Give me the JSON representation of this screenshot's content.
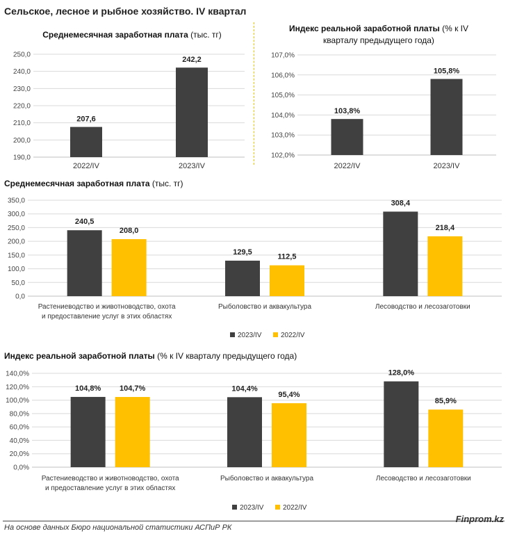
{
  "page": {
    "title": "Сельское, лесное и рыбное хозяйство. IV квартал"
  },
  "colors": {
    "dark": "#404040",
    "accent": "#ffc000",
    "grid": "#d9d9d9",
    "divider": "#f2c200"
  },
  "chart_data": [
    {
      "id": "salary_total",
      "type": "bar",
      "title_bold": "Среднемесячная заработная плата",
      "title_rest": " (тыс. тг)",
      "categories": [
        "2022/IV",
        "2023/IV"
      ],
      "values": [
        207.6,
        242.2
      ],
      "value_labels": [
        "207,6",
        "242,2"
      ],
      "ylim": [
        190,
        250
      ],
      "yticks": [
        "190,0",
        "200,0",
        "210,0",
        "220,0",
        "230,0",
        "240,0",
        "250,0"
      ],
      "grid": true
    },
    {
      "id": "index_total",
      "type": "bar",
      "title_bold": "Индекс реальной заработной платы",
      "title_rest": " (% к IV кварталу предыдущего года)",
      "categories": [
        "2022/IV",
        "2023/IV"
      ],
      "values": [
        103.8,
        105.8
      ],
      "value_labels": [
        "103,8%",
        "105,8%"
      ],
      "ylim": [
        102,
        107
      ],
      "yticks": [
        "102,0%",
        "103,0%",
        "104,0%",
        "105,0%",
        "106,0%",
        "107,0%"
      ],
      "grid": true
    },
    {
      "id": "salary_by_sector",
      "type": "bar",
      "title_bold": "Среднемесячная заработная плата",
      "title_rest": " (тыс. тг)",
      "categories": [
        "Растениеводство и животноводство, охота|и предоставление услуг в этих областях",
        "Рыболовство и аквакультура",
        "Лесоводство и лесозаготовки"
      ],
      "series": [
        {
          "name": "2023/IV",
          "values": [
            240.5,
            129.5,
            308.4
          ],
          "labels": [
            "240,5",
            "129,5",
            "308,4"
          ]
        },
        {
          "name": "2022/IV",
          "values": [
            208.0,
            112.5,
            218.4
          ],
          "labels": [
            "208,0",
            "112,5",
            "218,4"
          ]
        }
      ],
      "ylim": [
        0,
        350
      ],
      "yticks": [
        "0,0",
        "50,0",
        "100,0",
        "150,0",
        "200,0",
        "250,0",
        "300,0",
        "350,0"
      ],
      "legend": "bottom-center",
      "grid": true
    },
    {
      "id": "index_by_sector",
      "type": "bar",
      "title_bold": "Индекс реальной заработной платы",
      "title_rest": " (% к IV кварталу предыдущего года)",
      "categories": [
        "Растениеводство и животноводство, охота|и предоставление услуг в этих областях",
        "Рыболовство и аквакультура",
        "Лесоводство и лесозаготовки"
      ],
      "series": [
        {
          "name": "2023/IV",
          "values": [
            104.8,
            104.4,
            128.0
          ],
          "labels": [
            "104,8%",
            "104,4%",
            "128,0%"
          ]
        },
        {
          "name": "2022/IV",
          "values": [
            104.7,
            95.4,
            85.9
          ],
          "labels": [
            "104,7%",
            "95,4%",
            "85,9%"
          ]
        }
      ],
      "ylim": [
        0,
        140
      ],
      "yticks": [
        "0,0%",
        "20,0%",
        "40,0%",
        "60,0%",
        "80,0%",
        "100,0%",
        "120,0%",
        "140,0%"
      ],
      "legend": "bottom-center",
      "grid": true
    }
  ],
  "footer": {
    "source": "На основе данных Бюро национальной статистики АСПиР РК",
    "brand": "Finprom.kz"
  }
}
